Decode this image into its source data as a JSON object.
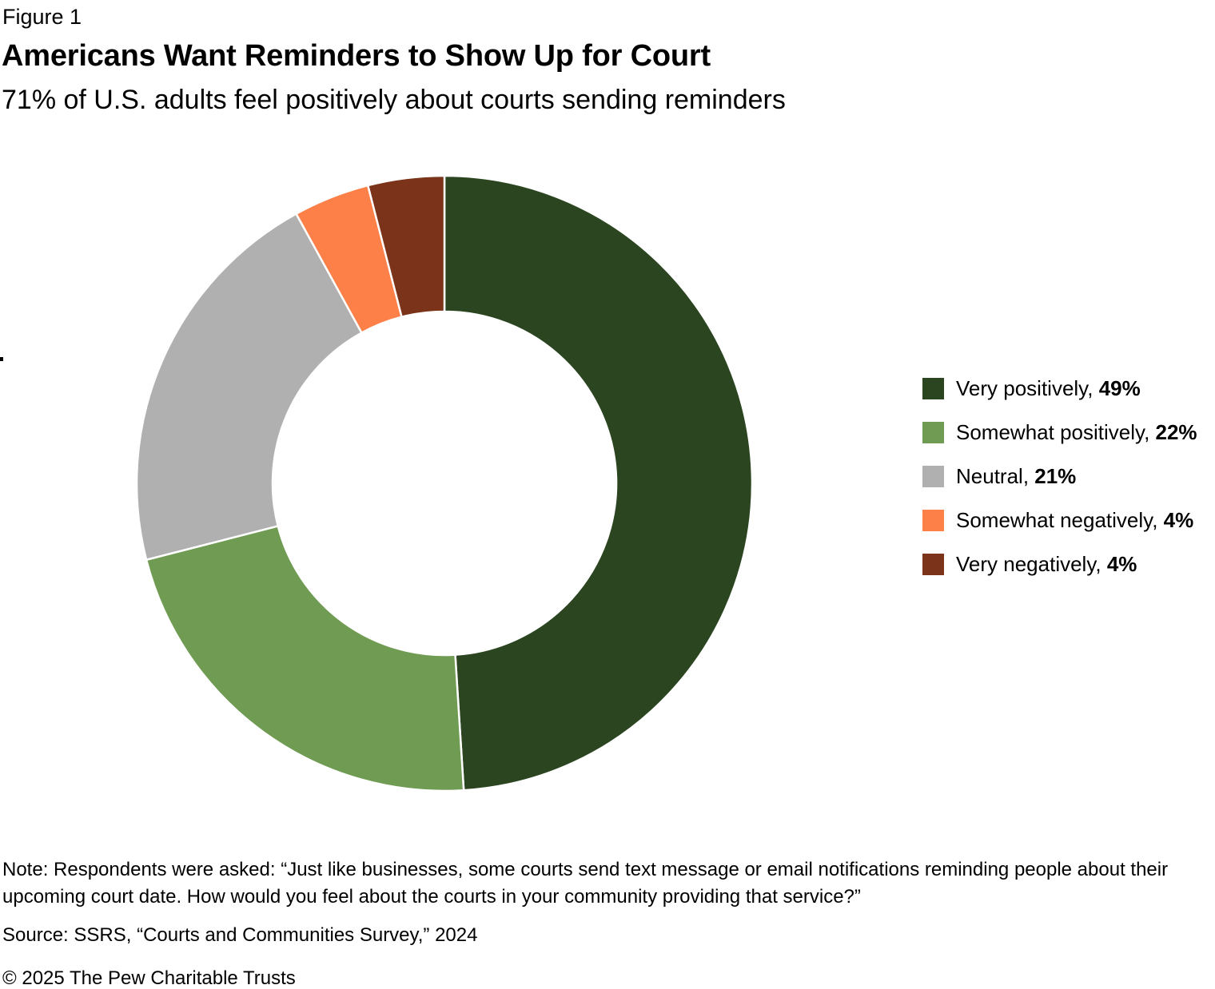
{
  "header": {
    "figure_label": "Figure 1",
    "title": "Americans Want Reminders to Show Up for Court",
    "subtitle": "71% of U.S. adults feel positively about courts sending reminders"
  },
  "chart_data": {
    "type": "pie",
    "variant": "donut",
    "title": "Americans Want Reminders to Show Up for Court",
    "subtitle": "71% of U.S. adults feel positively about courts sending reminders",
    "categories": [
      "Very positively",
      "Somewhat positively",
      "Neutral",
      "Somewhat negatively",
      "Very negatively"
    ],
    "values": [
      49,
      22,
      21,
      4,
      4
    ],
    "unit": "%",
    "colors": [
      "#2a451f",
      "#6f9b52",
      "#b0b0b0",
      "#fc8048",
      "#7b3319"
    ],
    "start_angle_deg": 0,
    "direction": "clockwise",
    "inner_radius_ratio": 0.558,
    "separator_color": "#ffffff",
    "legend_position": "right",
    "legend_format": "{label}, {value}%"
  },
  "footer": {
    "note": "Note: Respondents were asked: “Just like businesses, some courts send text message or email notifications reminding people about their upcoming court date. How would you feel about the courts in your community providing that service?”",
    "source": "Source: SSRS, “Courts and Communities Survey,” 2024",
    "copyright": "© 2025 The Pew Charitable Trusts"
  }
}
